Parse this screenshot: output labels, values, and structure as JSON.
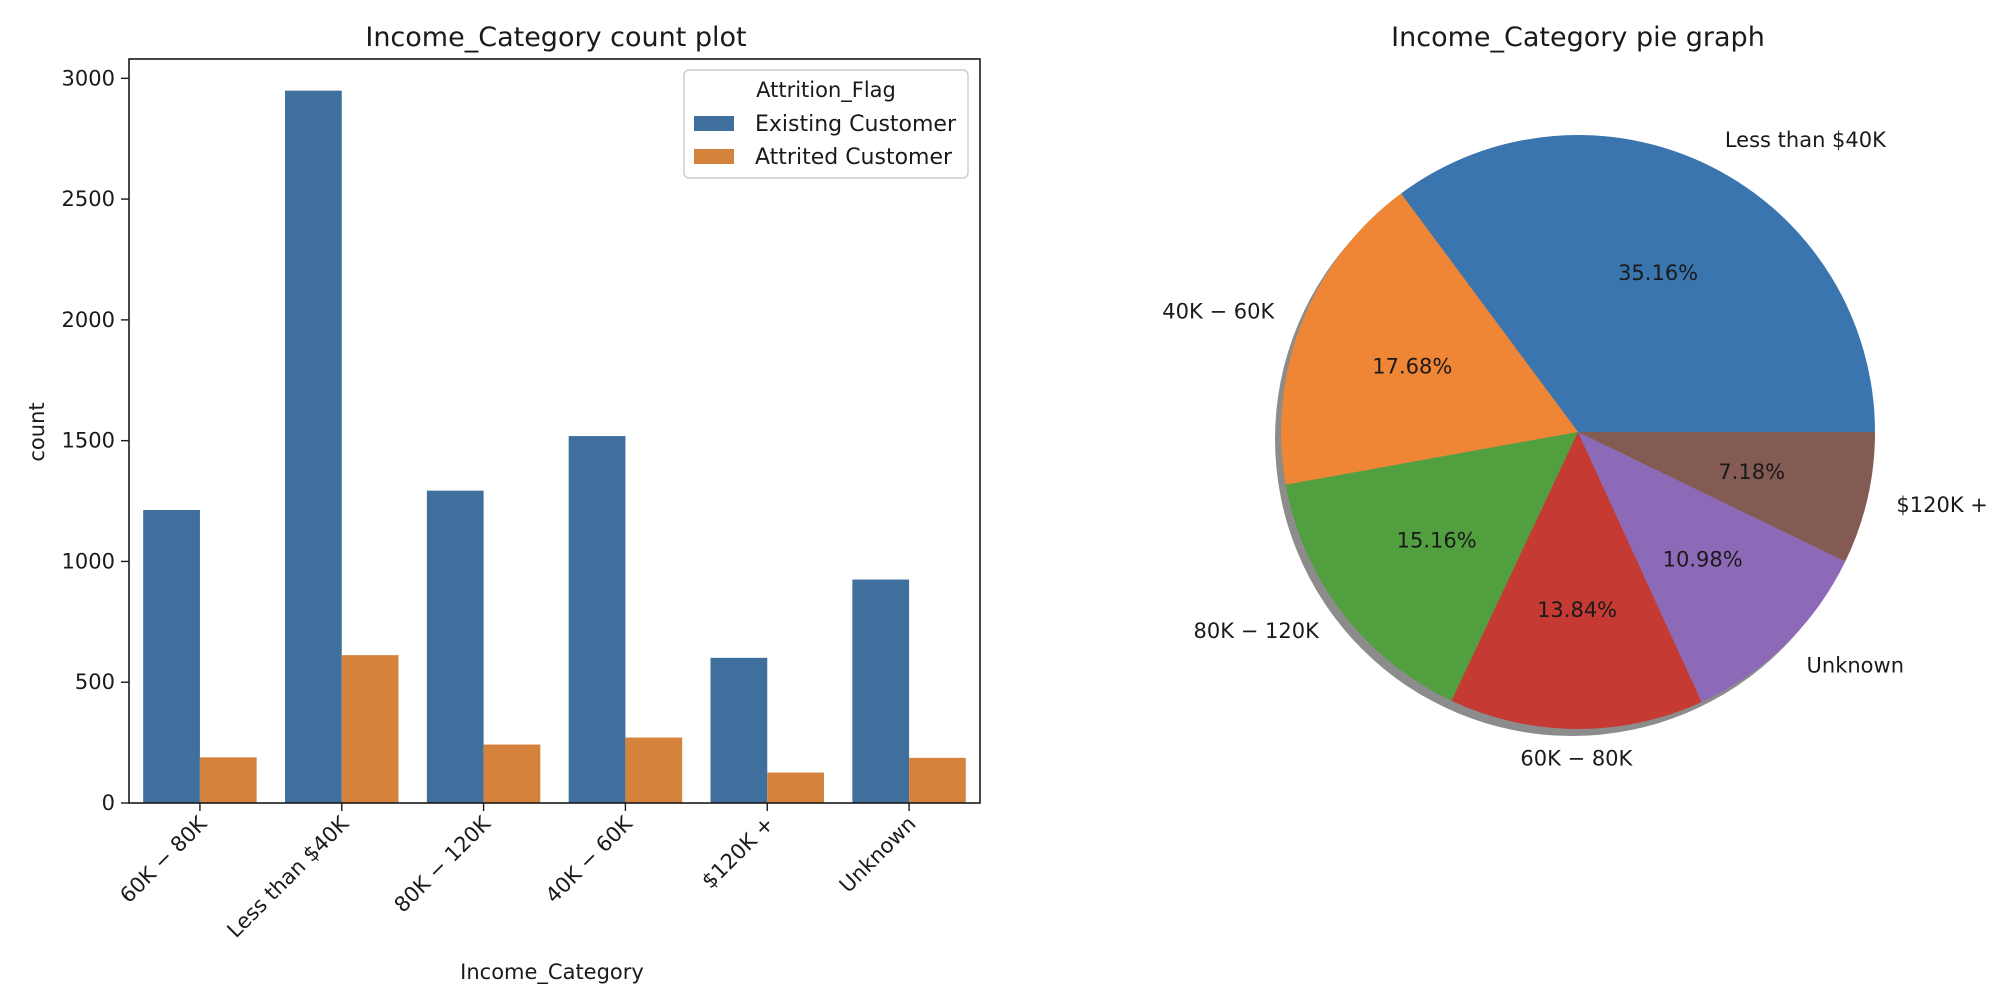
{
  "figure": {
    "left_title": "Income_Category count plot",
    "right_title": "Income_Category pie graph"
  },
  "chart_data": [
    {
      "type": "bar",
      "title": "Income_Category count plot",
      "xlabel": "Income_Category",
      "ylabel": "count",
      "ylim": [
        0,
        3080
      ],
      "yticks": [
        0,
        500,
        1000,
        1500,
        2000,
        2500,
        3000
      ],
      "categories": [
        "$60K - $80K",
        "Less than $40K",
        "$80K - $120K",
        "$40K - $60K",
        "$120K +",
        "Unknown"
      ],
      "tick_labels": [
        "60K − 80K",
        "Less than $40K",
        "80K − 120K",
        "40K − 60K",
        "$120K +",
        "Unknown"
      ],
      "series": [
        {
          "name": "Existing Customer",
          "color": "#3f6f9d",
          "values": [
            1213,
            2949,
            1293,
            1519,
            601,
            925
          ]
        },
        {
          "name": "Attrited Customer",
          "color": "#d5823c",
          "values": [
            189,
            612,
            242,
            271,
            126,
            187
          ]
        }
      ],
      "legend": {
        "title": "Attrition_Flag",
        "position": "top-right"
      },
      "grid": false
    },
    {
      "type": "pie",
      "title": "Income_Category pie graph",
      "labels": [
        "Less than $40K",
        "40K − 60K",
        "80K − 120K",
        "60K − 80K",
        "Unknown",
        "$120K +"
      ],
      "values": [
        35.16,
        17.68,
        15.16,
        13.84,
        10.98,
        7.18
      ],
      "pct_labels": [
        "35.16%",
        "17.68%",
        "15.16%",
        "13.84%",
        "10.98%",
        "7.18%"
      ],
      "colors": [
        "#3a75af",
        "#ee8636",
        "#529f3f",
        "#c53a33",
        "#8d6ab8",
        "#845b53"
      ],
      "start_angle": 0,
      "direction": "counterclockwise",
      "shadow": true
    }
  ]
}
